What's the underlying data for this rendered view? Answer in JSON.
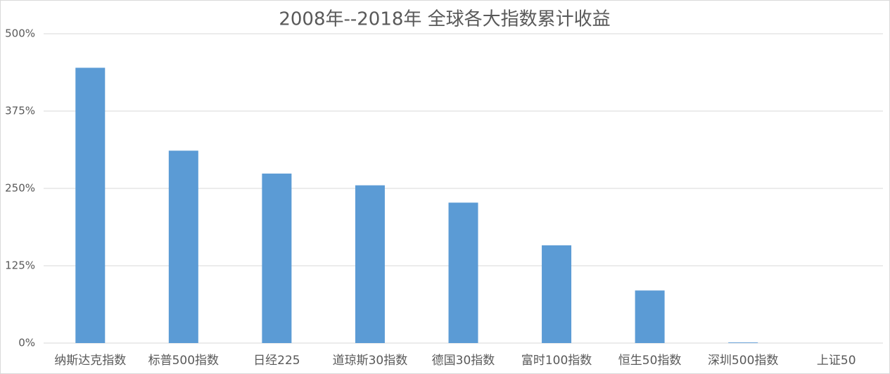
{
  "chart_data": {
    "type": "bar",
    "title": "2008年--2018年 全球各大指数累计收益",
    "categories": [
      "纳斯达克指数",
      "标普500指数",
      "日经225",
      "道琼斯30指数",
      "德国30指数",
      "富时100指数",
      "恒生50指数",
      "深圳500指数",
      "上证50"
    ],
    "values": [
      445,
      311,
      274,
      255,
      227,
      158,
      85,
      1,
      0
    ],
    "color": "#5b9bd5",
    "ylim": [
      0,
      500
    ],
    "yticks": [
      {
        "value": 0,
        "label": "0%"
      },
      {
        "value": 125,
        "label": "125%"
      },
      {
        "value": 250,
        "label": "250%"
      },
      {
        "value": 375,
        "label": "375%"
      },
      {
        "value": 500,
        "label": "500%"
      }
    ],
    "grid": true
  }
}
